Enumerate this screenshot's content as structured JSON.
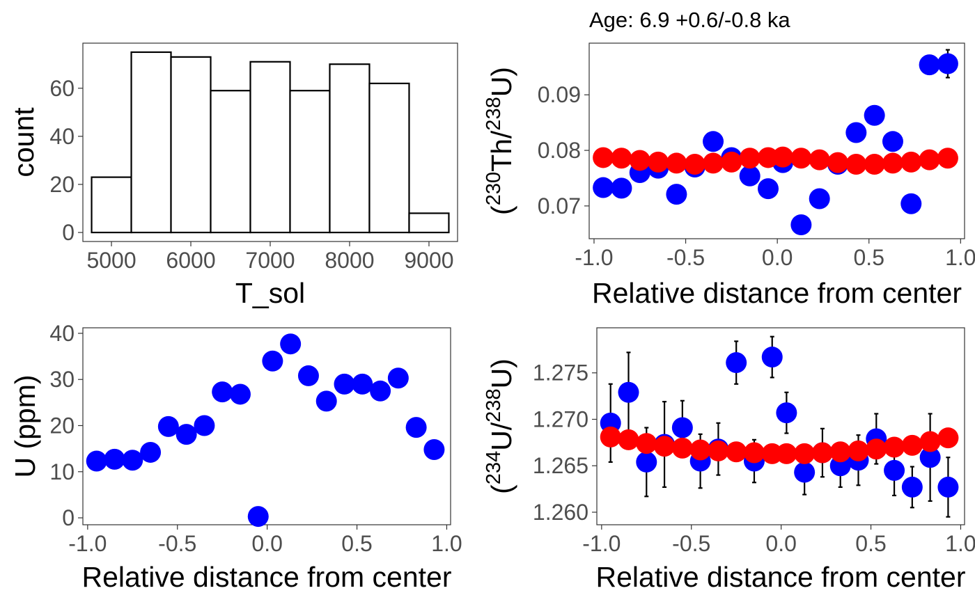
{
  "chart_data": [
    {
      "id": "hist",
      "type": "bar",
      "title": "",
      "xlabel": "T_sol",
      "ylabel": "count",
      "xlim": [
        4640,
        9360
      ],
      "ylim": [
        -3.75,
        78.75
      ],
      "xticks": [
        "5000",
        "6000",
        "7000",
        "8000",
        "9000"
      ],
      "yticks": [
        "0",
        "20",
        "40",
        "60"
      ],
      "bin_width": 500,
      "bins": [
        {
          "center": 5000,
          "value": 23
        },
        {
          "center": 5500,
          "value": 75
        },
        {
          "center": 6000,
          "value": 73
        },
        {
          "center": 6500,
          "value": 59
        },
        {
          "center": 7000,
          "value": 71
        },
        {
          "center": 7500,
          "value": 59
        },
        {
          "center": 8000,
          "value": 70
        },
        {
          "center": 8500,
          "value": 62
        },
        {
          "center": 9000,
          "value": 8
        }
      ],
      "fill": "#ffffff",
      "stroke": "#000000"
    },
    {
      "id": "thu",
      "type": "scatter",
      "title": "Age: 6.9 +0.6/-0.8 ka",
      "xlabel": "Relative distance from center",
      "ylabel": {
        "open": "(",
        "iso1": "230",
        "el1": "Th/",
        "iso2": "238",
        "el2": "U",
        "close": ")"
      },
      "xlim": [
        -1.0265,
        1.0215
      ],
      "ylim": [
        0.0641,
        0.0993
      ],
      "xticks": [
        "-1.0",
        "-0.5",
        "0.0",
        "0.5",
        "1.0"
      ],
      "yticks": [
        "0.07",
        "0.08",
        "0.09"
      ],
      "series": [
        {
          "role": "measured",
          "color": "#0000ff",
          "x": [
            -0.95,
            -0.85,
            -0.75,
            -0.65,
            -0.55,
            -0.45,
            -0.35,
            -0.25,
            -0.15,
            -0.05,
            0.03,
            0.13,
            0.23,
            0.33,
            0.43,
            0.53,
            0.63,
            0.73,
            0.83,
            0.93
          ],
          "y": [
            0.0733,
            0.0732,
            0.076,
            0.0768,
            0.0721,
            0.077,
            0.0816,
            0.0787,
            0.0754,
            0.0731,
            0.0778,
            0.0666,
            0.0713,
            0.0775,
            0.0832,
            0.0863,
            0.0816,
            0.0704,
            0.0954,
            0.0956
          ],
          "err": [
            0.0003,
            0.0003,
            0,
            0,
            0,
            0,
            0,
            0,
            0,
            0,
            0,
            0,
            0,
            0,
            0,
            0,
            0,
            0,
            0.0002,
            0.0025
          ]
        },
        {
          "role": "model",
          "color": "#ff0000",
          "x": [
            -0.95,
            -0.85,
            -0.75,
            -0.65,
            -0.55,
            -0.45,
            -0.35,
            -0.25,
            -0.15,
            -0.05,
            0.03,
            0.13,
            0.23,
            0.33,
            0.43,
            0.53,
            0.63,
            0.73,
            0.83,
            0.93
          ],
          "y": [
            0.0787,
            0.0786,
            0.0782,
            0.0779,
            0.0777,
            0.0775,
            0.0777,
            0.0779,
            0.0786,
            0.0787,
            0.0788,
            0.0786,
            0.0783,
            0.0778,
            0.0775,
            0.0775,
            0.0777,
            0.0779,
            0.0783,
            0.0786
          ]
        }
      ]
    },
    {
      "id": "uppm",
      "type": "scatter",
      "title": "",
      "xlabel": "Relative distance from center",
      "ylabel": "U (ppm)",
      "xlim": [
        -1.0265,
        1.0215
      ],
      "ylim": [
        -1.5,
        41.2
      ],
      "xticks": [
        "-1.0",
        "-0.5",
        "0.0",
        "0.5",
        "1.0"
      ],
      "yticks": [
        "0",
        "10",
        "20",
        "30",
        "40"
      ],
      "series": [
        {
          "role": "measured",
          "color": "#0000ff",
          "x": [
            -0.95,
            -0.85,
            -0.75,
            -0.65,
            -0.55,
            -0.45,
            -0.35,
            -0.25,
            -0.15,
            -0.05,
            0.03,
            0.13,
            0.23,
            0.33,
            0.43,
            0.53,
            0.63,
            0.73,
            0.83,
            0.93
          ],
          "y": [
            12.3,
            12.7,
            12.5,
            14.2,
            19.8,
            18.1,
            20.0,
            27.3,
            26.8,
            0.3,
            34.0,
            37.7,
            30.8,
            25.3,
            29.0,
            29.0,
            27.5,
            30.3,
            19.6,
            14.8
          ],
          "err": []
        }
      ]
    },
    {
      "id": "uu",
      "type": "scatter",
      "title": "",
      "xlabel": "Relative distance from center",
      "ylabel": {
        "open": "(",
        "iso1": "234",
        "el1": "U/",
        "iso2": "238",
        "el2": "U",
        "close": ")"
      },
      "xlim": [
        -1.0265,
        1.0215
      ],
      "ylim": [
        1.25865,
        1.27985
      ],
      "xticks": [
        "-1.0",
        "-0.5",
        "0.0",
        "0.5",
        "1.0"
      ],
      "yticks": [
        "1.260",
        "1.265",
        "1.270",
        "1.275"
      ],
      "series": [
        {
          "role": "measured",
          "color": "#0000ff",
          "x": [
            -0.95,
            -0.85,
            -0.75,
            -0.65,
            -0.55,
            -0.45,
            -0.35,
            -0.25,
            -0.15,
            -0.05,
            0.03,
            0.13,
            0.23,
            0.33,
            0.43,
            0.53,
            0.63,
            0.73,
            0.83,
            0.93
          ],
          "y": [
            1.2696,
            1.2729,
            1.2654,
            1.2673,
            1.2691,
            1.2655,
            1.2668,
            1.2761,
            1.2655,
            1.2767,
            1.2707,
            1.2643,
            1.2664,
            1.265,
            1.2656,
            1.2679,
            1.2645,
            1.2627,
            1.2659,
            1.2627
          ],
          "err": [
            0.0042,
            0.0043,
            0.0037,
            0.0046,
            0.0029,
            0.0029,
            0.0028,
            0.0023,
            0.0023,
            0.0022,
            0.0022,
            0.0024,
            0.0026,
            0.0023,
            0.0027,
            0.0027,
            0.0027,
            0.0022,
            0.0047,
            0.0032
          ]
        },
        {
          "role": "model",
          "color": "#ff0000",
          "x": [
            -0.95,
            -0.85,
            -0.75,
            -0.65,
            -0.55,
            -0.45,
            -0.35,
            -0.25,
            -0.15,
            -0.05,
            0.03,
            0.13,
            0.23,
            0.33,
            0.43,
            0.53,
            0.63,
            0.73,
            0.83,
            0.93
          ],
          "y": [
            1.2681,
            1.2678,
            1.2674,
            1.2671,
            1.2669,
            1.2667,
            1.2666,
            1.2665,
            1.2664,
            1.2663,
            1.2663,
            1.2663,
            1.2664,
            1.2665,
            1.2666,
            1.2668,
            1.267,
            1.2672,
            1.2676,
            1.268
          ]
        }
      ]
    }
  ]
}
